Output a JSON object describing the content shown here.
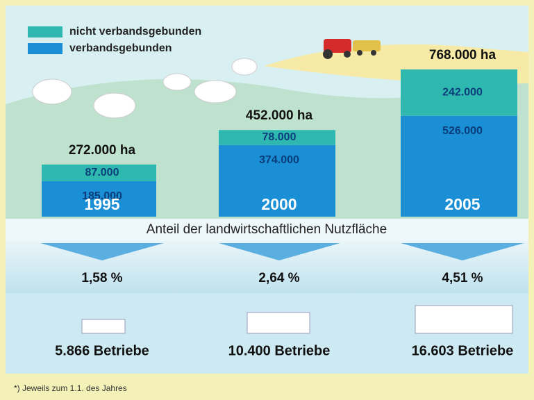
{
  "chart_data": {
    "type": "bar",
    "stacked": true,
    "categories": [
      "1995",
      "2000",
      "2005"
    ],
    "series": [
      {
        "name": "verbandsgebunden",
        "color": "#1a8fd6",
        "values": [
          185000,
          374000,
          526000
        ],
        "value_labels": [
          "185.000",
          "374.000",
          "526.000"
        ]
      },
      {
        "name": "nicht verbandsgebunden",
        "color": "#2fb8b0",
        "values": [
          87000,
          78000,
          242000
        ],
        "value_labels": [
          "87.000",
          "78.000",
          "242.000"
        ]
      }
    ],
    "totals": [
      272000,
      452000,
      768000
    ],
    "total_labels": [
      "272.000 ha",
      "452.000 ha",
      "768.000 ha"
    ],
    "subtitle": "Anteil der landwirtschaftlichen Nutzfläche",
    "share_labels": [
      "1,58 %",
      "2,64 %",
      "4,51 %"
    ],
    "farm_labels": [
      "5.866 Betriebe",
      "10.400 Betriebe",
      "16.603 Betriebe"
    ],
    "footnote": "*) Jeweils zum 1.1. des Jahres"
  }
}
